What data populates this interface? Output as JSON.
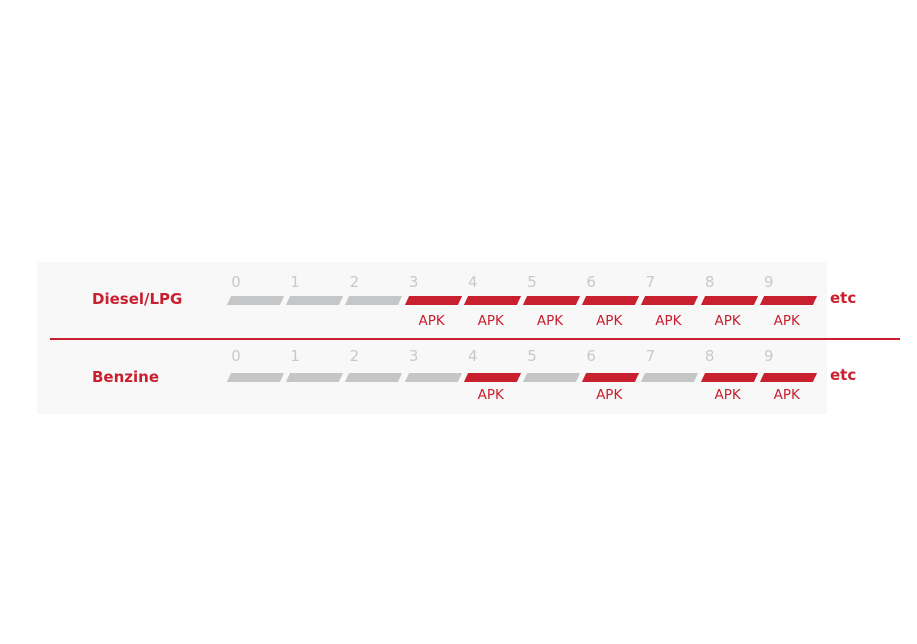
{
  "colors": {
    "accent": "#c8202f",
    "inactive": "#c4c6c8",
    "number": "#c9c9c9"
  },
  "rows": [
    {
      "label": "Diesel/LPG",
      "years": [
        "0",
        "1",
        "2",
        "3",
        "4",
        "5",
        "6",
        "7",
        "8",
        "9"
      ],
      "apk": [
        false,
        false,
        false,
        true,
        true,
        true,
        true,
        true,
        true,
        true
      ],
      "apk_label": "APK",
      "etc": "etc"
    },
    {
      "label": "Benzine",
      "years": [
        "0",
        "1",
        "2",
        "3",
        "4",
        "5",
        "6",
        "7",
        "8",
        "9"
      ],
      "apk": [
        false,
        false,
        false,
        false,
        true,
        false,
        true,
        false,
        true,
        true
      ],
      "apk_label": "APK",
      "etc": "etc"
    }
  ]
}
